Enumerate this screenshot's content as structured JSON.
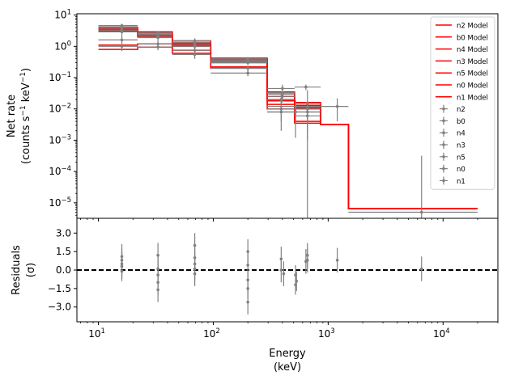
{
  "chart_data": {
    "type": "line",
    "xscale": "log",
    "xlim": [
      6.5,
      30000
    ],
    "x_ticks": [
      {
        "value": 10,
        "base": "10",
        "exp": "1"
      },
      {
        "value": 100,
        "base": "10",
        "exp": "2"
      },
      {
        "value": 1000,
        "base": "10",
        "exp": "3"
      },
      {
        "value": 10000,
        "base": "10",
        "exp": "4"
      }
    ],
    "xlabel": [
      "Energy",
      "(keV)"
    ],
    "top_panel": {
      "yscale": "log",
      "ylim": [
        3.2e-06,
        11
      ],
      "ylabel_line1": "Net rate",
      "ylabel_line2_parts": [
        "(counts s",
        "−1",
        " keV",
        "−1",
        ")"
      ],
      "y_ticks": [
        {
          "value": 10,
          "base": "10",
          "exp": "1"
        },
        {
          "value": 1,
          "base": "10",
          "exp": "0"
        },
        {
          "value": 0.1,
          "base": "10",
          "exp": "−1"
        },
        {
          "value": 0.01,
          "base": "10",
          "exp": "−2"
        },
        {
          "value": 0.001,
          "base": "10",
          "exp": "−3"
        },
        {
          "value": 0.0001,
          "base": "10",
          "exp": "−4"
        },
        {
          "value": 1e-05,
          "base": "10",
          "exp": "−5"
        }
      ],
      "model_edges": [
        10,
        22,
        44,
        95,
        295,
        510,
        860,
        1500,
        20000
      ],
      "models": [
        {
          "name": "n2 Model",
          "values": [
            3.6,
            2.4,
            1.2,
            0.36,
            0.02,
            0.011,
            0.0032,
            6.5e-06
          ]
        },
        {
          "name": "b0 Model",
          "values": [
            4.0,
            2.9,
            1.5,
            0.42,
            0.035,
            0.016,
            0.0032,
            6.5e-06
          ]
        },
        {
          "name": "n4 Model",
          "values": [
            1.1,
            1.2,
            0.75,
            0.22,
            0.014,
            0.004,
            0.0032,
            6.5e-06
          ]
        },
        {
          "name": "n3 Model",
          "values": [
            3.0,
            2.0,
            1.0,
            0.3,
            0.025,
            0.011,
            0.0032,
            6.5e-06
          ]
        },
        {
          "name": "n5 Model",
          "values": [
            0.8,
            0.95,
            0.6,
            0.2,
            0.01,
            0.0035,
            0.0032,
            6.5e-06
          ]
        },
        {
          "name": "n0 Model",
          "values": [
            3.3,
            2.2,
            1.1,
            0.33,
            0.018,
            0.01,
            0.0032,
            6.5e-06
          ]
        },
        {
          "name": "n1 Model",
          "values": [
            3.8,
            2.7,
            1.3,
            0.39,
            0.03,
            0.013,
            0.0032,
            6.5e-06
          ]
        }
      ],
      "data_series": [
        {
          "name": "n2",
          "points": [
            {
              "x": 16,
              "y": 4.2,
              "xlo": 10,
              "xhi": 22,
              "ylo": 3.5,
              "yhi": 5.0
            },
            {
              "x": 33,
              "y": 2.4,
              "xlo": 22,
              "xhi": 44,
              "ylo": 2.0,
              "yhi": 2.9
            },
            {
              "x": 69,
              "y": 1.3,
              "xlo": 44,
              "xhi": 95,
              "ylo": 1.1,
              "yhi": 1.6
            },
            {
              "x": 200,
              "y": 0.4,
              "xlo": 95,
              "xhi": 295,
              "ylo": 0.35,
              "yhi": 0.46
            },
            {
              "x": 390,
              "y": 0.02,
              "xlo": 295,
              "xhi": 510,
              "ylo": 0.012,
              "yhi": 0.03
            },
            {
              "x": 660,
              "y": 0.015,
              "xlo": 510,
              "xhi": 860,
              "ylo": 0.003,
              "yhi": 0.04
            }
          ]
        },
        {
          "name": "b0",
          "points": [
            {
              "x": 16,
              "y": 3.8,
              "xlo": 10,
              "xhi": 22,
              "ylo": 3.2,
              "yhi": 4.5
            },
            {
              "x": 33,
              "y": 2.6,
              "xlo": 22,
              "xhi": 44,
              "ylo": 2.2,
              "yhi": 3.1
            },
            {
              "x": 69,
              "y": 1.5,
              "xlo": 44,
              "xhi": 95,
              "ylo": 1.3,
              "yhi": 1.8
            },
            {
              "x": 200,
              "y": 0.3,
              "xlo": 95,
              "xhi": 295,
              "ylo": 0.26,
              "yhi": 0.35
            },
            {
              "x": 400,
              "y": 0.045,
              "xlo": 295,
              "xhi": 510,
              "ylo": 0.03,
              "yhi": 0.06
            },
            {
              "x": 640,
              "y": 0.05,
              "xlo": 510,
              "xhi": 860,
              "ylo": 0.04,
              "yhi": 0.06
            },
            {
              "x": 1200,
              "y": 0.012,
              "xlo": 860,
              "xhi": 1500,
              "ylo": 0.004,
              "yhi": 0.022
            },
            {
              "x": 6500,
              "y": 5e-06,
              "xlo": 1500,
              "xhi": 20000,
              "ylo": 3.2e-06,
              "yhi": 0.00032
            }
          ]
        },
        {
          "name": "n4",
          "points": [
            {
              "x": 16,
              "y": 1.6,
              "xlo": 10,
              "xhi": 22,
              "ylo": 1.0,
              "yhi": 2.3
            },
            {
              "x": 33,
              "y": 1.2,
              "xlo": 22,
              "xhi": 44,
              "ylo": 0.9,
              "yhi": 1.6
            },
            {
              "x": 69,
              "y": 0.75,
              "xlo": 44,
              "xhi": 95,
              "ylo": 0.5,
              "yhi": 1.0
            },
            {
              "x": 200,
              "y": 0.14,
              "xlo": 95,
              "xhi": 295,
              "ylo": 0.11,
              "yhi": 0.19
            },
            {
              "x": 390,
              "y": 0.008,
              "xlo": 295,
              "xhi": 510,
              "ylo": 0.002,
              "yhi": 0.016
            },
            {
              "x": 660,
              "y": 0.008,
              "xlo": 510,
              "xhi": 860,
              "ylo": 3.2e-06,
              "yhi": 0.017
            }
          ]
        },
        {
          "name": "n3",
          "points": [
            {
              "x": 16,
              "y": 2.9,
              "xlo": 10,
              "xhi": 22,
              "ylo": 2.3,
              "yhi": 3.5
            },
            {
              "x": 33,
              "y": 1.9,
              "xlo": 22,
              "xhi": 44,
              "ylo": 1.6,
              "yhi": 2.3
            },
            {
              "x": 69,
              "y": 1.0,
              "xlo": 44,
              "xhi": 95,
              "ylo": 0.8,
              "yhi": 1.2
            },
            {
              "x": 200,
              "y": 0.35,
              "xlo": 95,
              "xhi": 295,
              "ylo": 0.3,
              "yhi": 0.4
            },
            {
              "x": 400,
              "y": 0.03,
              "xlo": 295,
              "xhi": 510,
              "ylo": 0.02,
              "yhi": 0.04
            },
            {
              "x": 520,
              "y": 0.008,
              "xlo": 295,
              "xhi": 860,
              "ylo": 0.0012,
              "yhi": 0.014
            }
          ]
        },
        {
          "name": "n5",
          "points": [
            {
              "x": 16,
              "y": 1.0,
              "xlo": 10,
              "xhi": 22,
              "ylo": 0.7,
              "yhi": 1.4
            },
            {
              "x": 33,
              "y": 0.95,
              "xlo": 22,
              "xhi": 44,
              "ylo": 0.75,
              "yhi": 1.2
            },
            {
              "x": 69,
              "y": 0.55,
              "xlo": 44,
              "xhi": 95,
              "ylo": 0.4,
              "yhi": 0.7
            },
            {
              "x": 200,
              "y": 0.2,
              "xlo": 95,
              "xhi": 295,
              "ylo": 0.16,
              "yhi": 0.25
            },
            {
              "x": 390,
              "y": 0.01,
              "xlo": 295,
              "xhi": 510,
              "ylo": 0.004,
              "yhi": 0.017
            },
            {
              "x": 660,
              "y": 0.006,
              "xlo": 510,
              "xhi": 860,
              "ylo": 0.001,
              "yhi": 0.012
            }
          ]
        },
        {
          "name": "n0",
          "points": [
            {
              "x": 16,
              "y": 3.3,
              "xlo": 10,
              "xhi": 22,
              "ylo": 2.7,
              "yhi": 4.0
            },
            {
              "x": 33,
              "y": 2.1,
              "xlo": 22,
              "xhi": 44,
              "ylo": 1.8,
              "yhi": 2.5
            },
            {
              "x": 69,
              "y": 1.1,
              "xlo": 44,
              "xhi": 95,
              "ylo": 0.9,
              "yhi": 1.3
            },
            {
              "x": 200,
              "y": 0.32,
              "xlo": 95,
              "xhi": 295,
              "ylo": 0.27,
              "yhi": 0.38
            },
            {
              "x": 400,
              "y": 0.025,
              "xlo": 295,
              "xhi": 510,
              "ylo": 0.016,
              "yhi": 0.034
            },
            {
              "x": 520,
              "y": 0.012,
              "xlo": 295,
              "xhi": 860,
              "ylo": 0.005,
              "yhi": 0.019
            }
          ]
        },
        {
          "name": "n1",
          "points": [
            {
              "x": 16,
              "y": 4.6,
              "xlo": 10,
              "xhi": 22,
              "ylo": 3.9,
              "yhi": 5.3
            },
            {
              "x": 33,
              "y": 2.7,
              "xlo": 22,
              "xhi": 44,
              "ylo": 2.3,
              "yhi": 3.1
            },
            {
              "x": 69,
              "y": 1.45,
              "xlo": 44,
              "xhi": 95,
              "ylo": 1.2,
              "yhi": 1.7
            },
            {
              "x": 200,
              "y": 0.36,
              "xlo": 95,
              "xhi": 295,
              "ylo": 0.31,
              "yhi": 0.42
            },
            {
              "x": 400,
              "y": 0.033,
              "xlo": 295,
              "xhi": 510,
              "ylo": 0.022,
              "yhi": 0.045
            },
            {
              "x": 660,
              "y": 0.01,
              "xlo": 510,
              "xhi": 860,
              "ylo": 0.002,
              "yhi": 0.018
            }
          ]
        }
      ]
    },
    "residual_panel": {
      "ylim": [
        -4.2,
        4.2
      ],
      "ylabel_line1": "Residuals",
      "ylabel_line2": "(σ)",
      "y_ticks": [
        {
          "value": 3.0,
          "label": "3.0"
        },
        {
          "value": 1.5,
          "label": "1.5"
        },
        {
          "value": 0.0,
          "label": "0.0"
        },
        {
          "value": -1.5,
          "label": "−1.5"
        },
        {
          "value": -3.0,
          "label": "−3.0"
        }
      ],
      "zero_line": 0,
      "points": [
        {
          "x": 16,
          "y": 0.3,
          "err": 1.0
        },
        {
          "x": 16,
          "y": 0.8,
          "err": 1.0
        },
        {
          "x": 16,
          "y": -0.1,
          "err": 0.8
        },
        {
          "x": 16,
          "y": 1.1,
          "err": 1.0
        },
        {
          "x": 16,
          "y": 0.5,
          "err": 1.0
        },
        {
          "x": 33,
          "y": -0.4,
          "err": 1.0
        },
        {
          "x": 33,
          "y": -1.6,
          "err": 1.0
        },
        {
          "x": 33,
          "y": 1.2,
          "err": 1.0
        },
        {
          "x": 33,
          "y": -1.0,
          "err": 1.0
        },
        {
          "x": 33,
          "y": 0.1,
          "err": 1.0
        },
        {
          "x": 69,
          "y": 0.5,
          "err": 1.0
        },
        {
          "x": 69,
          "y": 2.0,
          "err": 1.0
        },
        {
          "x": 69,
          "y": -0.3,
          "err": 1.0
        },
        {
          "x": 69,
          "y": 1.0,
          "err": 1.0
        },
        {
          "x": 69,
          "y": 0.1,
          "err": 1.0
        },
        {
          "x": 200,
          "y": 1.5,
          "err": 1.0
        },
        {
          "x": 200,
          "y": -2.6,
          "err": 1.0
        },
        {
          "x": 200,
          "y": 0.4,
          "err": 1.0
        },
        {
          "x": 200,
          "y": -0.8,
          "err": 1.0
        },
        {
          "x": 200,
          "y": -1.5,
          "err": 0.8
        },
        {
          "x": 390,
          "y": 0.9,
          "err": 1.0
        },
        {
          "x": 390,
          "y": 0.0,
          "err": 1.0
        },
        {
          "x": 410,
          "y": -0.3,
          "err": 1.0
        },
        {
          "x": 520,
          "y": -0.4,
          "err": 0.8
        },
        {
          "x": 520,
          "y": -1.2,
          "err": 0.8
        },
        {
          "x": 530,
          "y": -0.9,
          "err": 0.8
        },
        {
          "x": 640,
          "y": 0.7,
          "err": 1.0
        },
        {
          "x": 660,
          "y": 1.2,
          "err": 1.0
        },
        {
          "x": 660,
          "y": 0.8,
          "err": 1.0
        },
        {
          "x": 1200,
          "y": 0.8,
          "err": 1.0
        },
        {
          "x": 6500,
          "y": 0.1,
          "err": 1.0
        }
      ]
    },
    "model_color": "#ff0000",
    "data_color": "#808080",
    "legend_placement": "upper-right",
    "grid": false
  }
}
